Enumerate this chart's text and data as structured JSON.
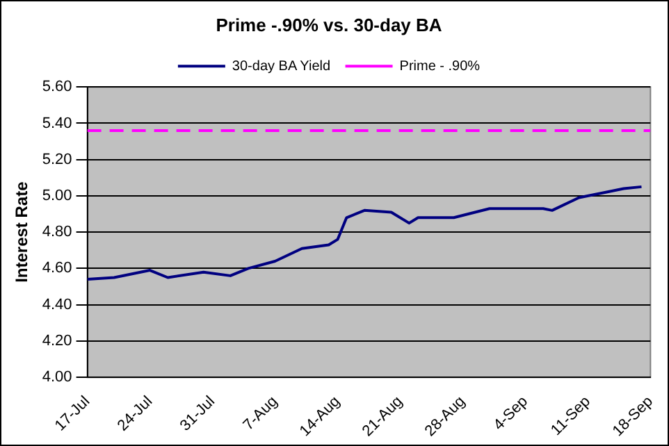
{
  "chart_data": {
    "type": "line",
    "title": "Prime -.90% vs. 30-day BA",
    "ylabel": "Interest Rate",
    "xlim": [
      "--07-17",
      "--09-18"
    ],
    "xticks": [
      {
        "value": "--07-17",
        "label": "17-Jul"
      },
      {
        "value": "--07-24",
        "label": "24-Jul"
      },
      {
        "value": "--07-31",
        "label": "31-Jul"
      },
      {
        "value": "--08-07",
        "label": "7-Aug"
      },
      {
        "value": "--08-14",
        "label": "14-Aug"
      },
      {
        "value": "--08-21",
        "label": "21-Aug"
      },
      {
        "value": "--08-28",
        "label": "28-Aug"
      },
      {
        "value": "--09-04",
        "label": "4-Sep"
      },
      {
        "value": "--09-11",
        "label": "11-Sep"
      },
      {
        "value": "--09-18",
        "label": "18-Sep"
      }
    ],
    "ylim": [
      4,
      5.6
    ],
    "yticks": [
      {
        "value": 4,
        "label": "4.00"
      },
      {
        "value": 4.2,
        "label": "4.20"
      },
      {
        "value": 4.4,
        "label": "4.40"
      },
      {
        "value": 4.6,
        "label": "4.60"
      },
      {
        "value": 4.8,
        "label": "4.80"
      },
      {
        "value": 5,
        "label": "5.00"
      },
      {
        "value": 5.2,
        "label": "5.20"
      },
      {
        "value": 5.4,
        "label": "5.40"
      },
      {
        "value": 5.6,
        "label": "5.60"
      }
    ],
    "series": [
      {
        "name": "30-day BA Yield",
        "color": "#000080",
        "line_style": "solid",
        "x": [
          "--07-17",
          "--07-20",
          "--07-24",
          "--07-26",
          "--07-30",
          "--08-02",
          "--08-04",
          "--08-07",
          "--08-10",
          "--08-13",
          "--08-14",
          "--08-15",
          "--08-17",
          "--08-20",
          "--08-22",
          "--08-23",
          "--08-27",
          "--08-31",
          "--09-06",
          "--09-07",
          "--09-10",
          "--09-13",
          "--09-15",
          "--09-17"
        ],
        "values": [
          4.54,
          4.55,
          4.59,
          4.55,
          4.58,
          4.56,
          4.6,
          4.64,
          4.71,
          4.73,
          4.76,
          4.88,
          4.92,
          4.91,
          4.85,
          4.88,
          4.88,
          4.93,
          4.93,
          4.92,
          4.99,
          5.02,
          5.04,
          5.05
        ]
      },
      {
        "name": "Prime - .90%",
        "color": "#ff00ff",
        "line_style": "dashed",
        "x": [
          "--07-17",
          "--09-18"
        ],
        "values": [
          5.36,
          5.36
        ]
      }
    ],
    "grid": "y",
    "legend": "top",
    "marker": "none"
  }
}
